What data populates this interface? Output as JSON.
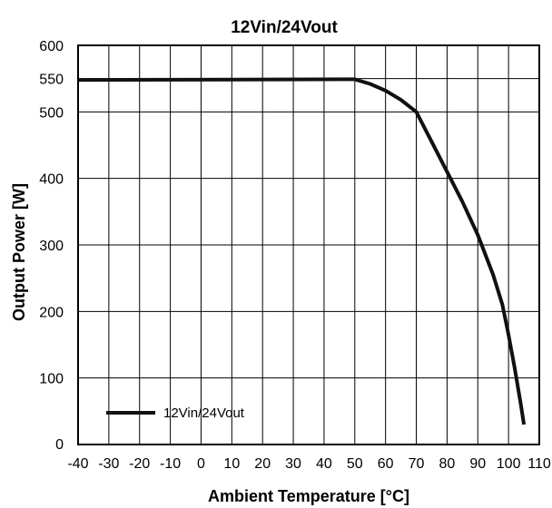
{
  "chart_data": {
    "type": "line",
    "title": "12Vin/24Vout",
    "xlabel": "Ambient Temperature [°C]",
    "ylabel": "Output Power [W]",
    "xlim": [
      -40,
      110
    ],
    "ylim": [
      0,
      600
    ],
    "x_ticks": [
      -40,
      -30,
      -20,
      -10,
      0,
      10,
      20,
      30,
      40,
      50,
      60,
      70,
      80,
      90,
      100,
      110
    ],
    "y_ticks": [
      0,
      100,
      200,
      300,
      400,
      500,
      550,
      600
    ],
    "grid": true,
    "legend_position": "bottom-left",
    "series": [
      {
        "name": "12Vin/24Vout",
        "color": "#111111",
        "x": [
          -40,
          50,
          55,
          60,
          65,
          70,
          75,
          80,
          85,
          90,
          95,
          98,
          100,
          102,
          104,
          105
        ],
        "y": [
          548,
          549,
          542,
          532,
          518,
          500,
          455,
          410,
          365,
          315,
          255,
          210,
          165,
          115,
          60,
          30
        ]
      }
    ]
  }
}
